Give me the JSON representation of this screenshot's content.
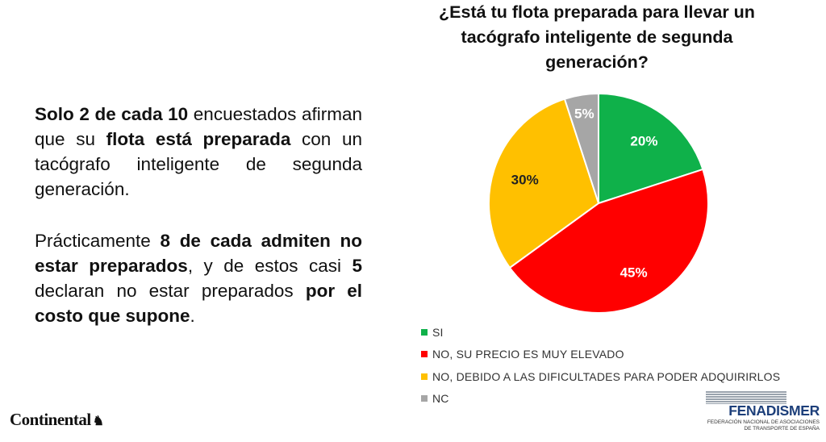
{
  "text": {
    "p1": [
      {
        "t": "Solo ",
        "b": true
      },
      {
        "t": "2",
        "b": true
      },
      {
        "t": " de cada ",
        "b": true
      },
      {
        "t": "10",
        "b": true
      },
      {
        "t": " encuestados afirman que su ",
        "b": false
      },
      {
        "t": "flota está preparada",
        "b": true
      },
      {
        "t": " con un tacógrafo inteligente de segunda generación.",
        "b": false
      }
    ],
    "p2": [
      {
        "t": "Prácticamente ",
        "b": false
      },
      {
        "t": "8 de cada admiten no estar preparados",
        "b": true
      },
      {
        "t": ", y de estos casi ",
        "b": false
      },
      {
        "t": "5",
        "b": true
      },
      {
        "t": " declaran no estar preparados ",
        "b": false
      },
      {
        "t": "por el costo que supone",
        "b": true
      },
      {
        "t": ".",
        "b": false
      }
    ]
  },
  "chart_data": {
    "type": "pie",
    "title": "¿Está tu flota preparada para llevar un tacógrafo inteligente de segunda generación?",
    "unit": "%",
    "slices": [
      {
        "label": "SI",
        "value": 20,
        "display": "20%",
        "color": "#0fb14a"
      },
      {
        "label": "NO, SU PRECIO ES MUY ELEVADO",
        "value": 45,
        "display": "45%",
        "color": "#ff0000"
      },
      {
        "label": "NO, DEBIDO A LAS DIFICULTADES PARA PODER ADQUIRIRLOS",
        "value": 30,
        "display": "30%",
        "color": "#ffc000"
      },
      {
        "label": "NC",
        "value": 5,
        "display": "5%",
        "color": "#a6a6a6"
      }
    ],
    "legend_position": "bottom-left"
  },
  "logos": {
    "continental": "Continental",
    "fenadismer": {
      "name": "FENADISMER",
      "subtitle_line1": "FEDERACIÓN NACIONAL DE ASOCIACIONES",
      "subtitle_line2": "DE TRANSPORTE DE ESPAÑA"
    }
  }
}
